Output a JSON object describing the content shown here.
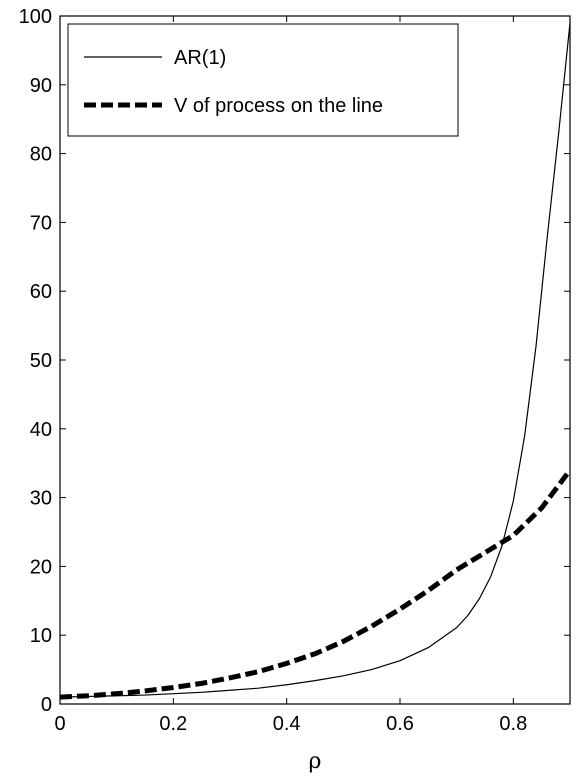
{
  "chart_data": {
    "type": "line",
    "title": "",
    "xlabel": "ρ",
    "ylabel": "",
    "xlim": [
      0,
      0.9
    ],
    "ylim": [
      0,
      100
    ],
    "x_ticks": [
      "0",
      "0.2",
      "0.4",
      "0.6",
      "0.8"
    ],
    "x_tick_values": [
      0,
      0.2,
      0.4,
      0.6,
      0.8
    ],
    "y_ticks": [
      "0",
      "10",
      "20",
      "30",
      "40",
      "50",
      "60",
      "70",
      "80",
      "90",
      "100"
    ],
    "y_tick_values": [
      0,
      10,
      20,
      30,
      40,
      50,
      60,
      70,
      80,
      90,
      100
    ],
    "grid": false,
    "legend_position": "top-left",
    "series": [
      {
        "name": "AR(1)",
        "style": "solid",
        "color": "#000000",
        "x": [
          0,
          0.05,
          0.1,
          0.15,
          0.2,
          0.25,
          0.3,
          0.35,
          0.4,
          0.45,
          0.5,
          0.55,
          0.6,
          0.65,
          0.7,
          0.72,
          0.74,
          0.76,
          0.78,
          0.8,
          0.82,
          0.84,
          0.86,
          0.88,
          0.9
        ],
        "values": [
          1.0,
          1.1,
          1.2,
          1.3,
          1.5,
          1.7,
          2.0,
          2.3,
          2.8,
          3.4,
          4.1,
          5.0,
          6.3,
          8.2,
          11.1,
          12.9,
          15.3,
          18.5,
          23.0,
          29.5,
          39.0,
          52.0,
          68.0,
          83.0,
          99.0
        ]
      },
      {
        "name": "V of process on the line",
        "style": "dashed",
        "color": "#000000",
        "x": [
          0,
          0.05,
          0.1,
          0.15,
          0.2,
          0.25,
          0.3,
          0.35,
          0.4,
          0.45,
          0.5,
          0.55,
          0.6,
          0.65,
          0.7,
          0.75,
          0.8,
          0.85,
          0.9
        ],
        "values": [
          1.0,
          1.2,
          1.5,
          1.9,
          2.4,
          3.0,
          3.8,
          4.7,
          5.9,
          7.3,
          9.1,
          11.3,
          13.8,
          16.5,
          19.5,
          22.0,
          24.5,
          28.5,
          34.0
        ]
      }
    ]
  }
}
